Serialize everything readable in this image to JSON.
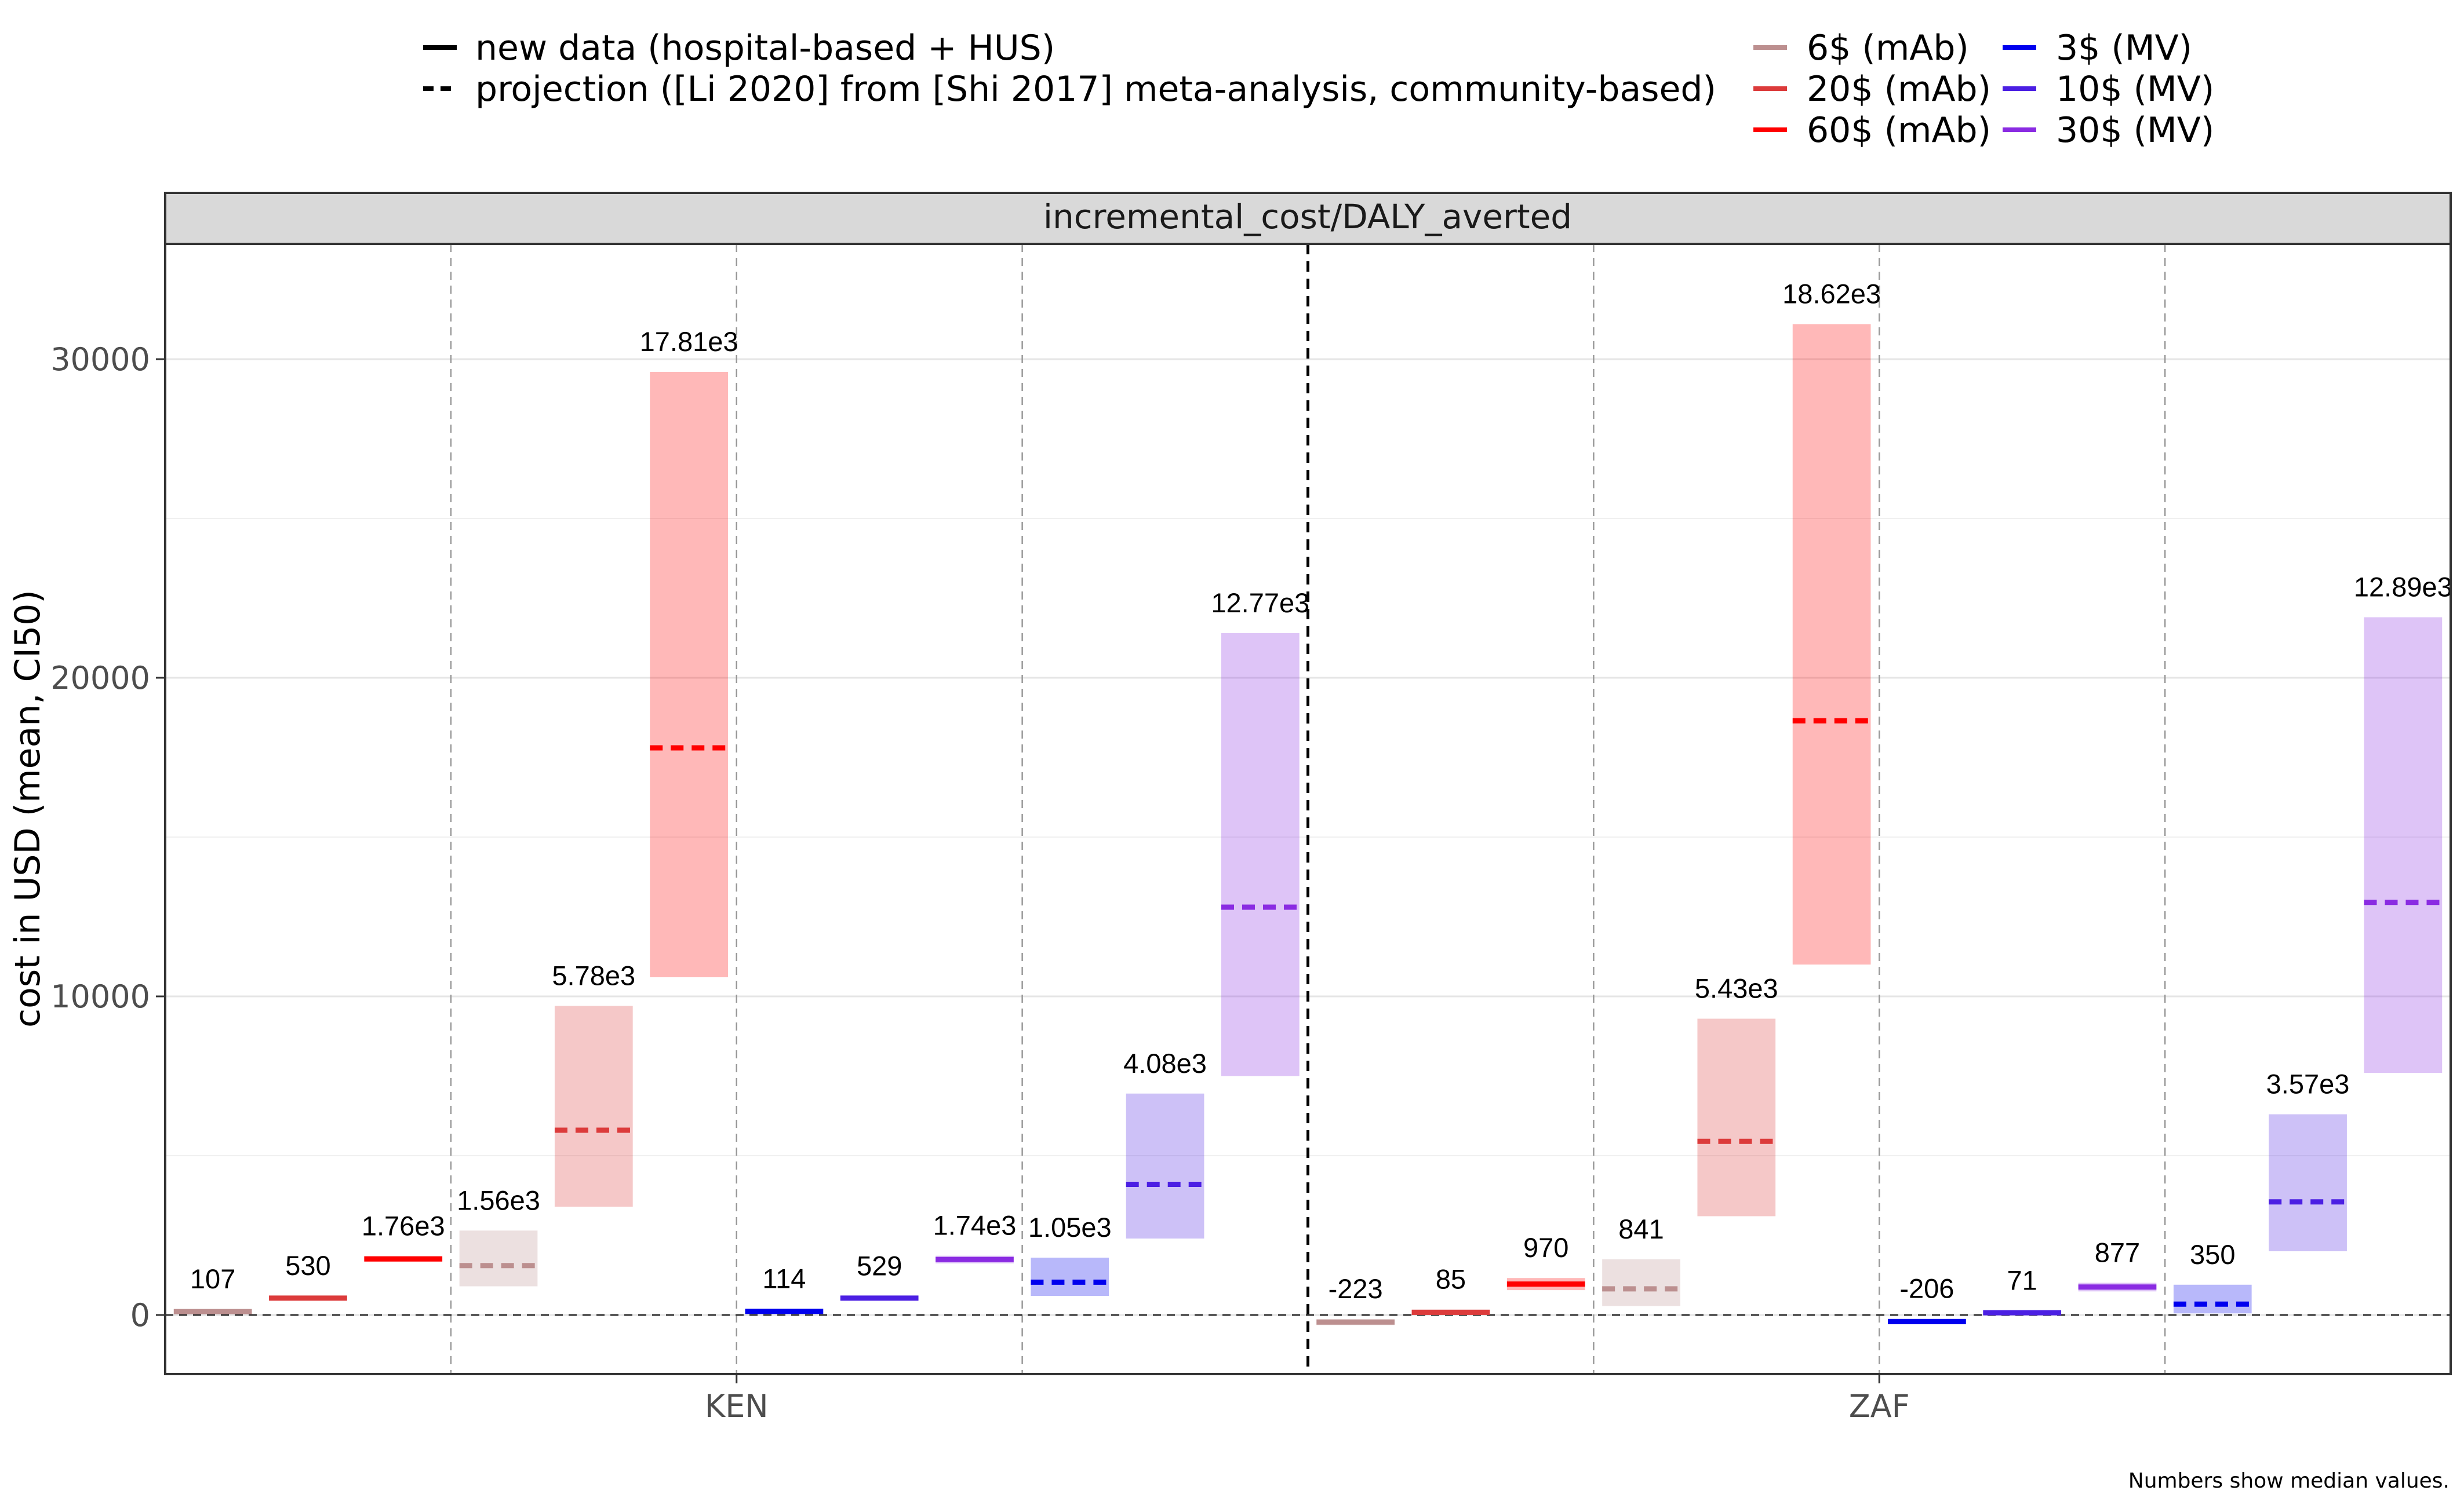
{
  "chart_data": {
    "type": "crossbar",
    "facet_label": "incremental_cost/DALY_averted",
    "ylabel": "cost in USD (mean, CI50)",
    "xlabel": "",
    "caption": "Numbers show median values.",
    "categories": [
      "KEN",
      "ZAF"
    ],
    "ylim": [
      -1900,
      34000
    ],
    "yticks": [
      0,
      10000,
      20000,
      30000
    ],
    "ytick_labels": [
      "0",
      "10000",
      "20000",
      "30000"
    ],
    "grid": true,
    "legend_placement": "top",
    "linetype_legend": [
      {
        "key": "solid",
        "label": "new data (hospital-based + HUS)"
      },
      {
        "key": "dashed",
        "label": "projection ([Li 2020] from [Shi 2017] meta-analysis, community-based)"
      }
    ],
    "color_legend": [
      {
        "key": "mab6",
        "label": "6$ (mAb)",
        "color": "#bc8f8f"
      },
      {
        "key": "mab20",
        "label": "20$ (mAb)",
        "color": "#dc3b3b"
      },
      {
        "key": "mab60",
        "label": "60$ (mAb)",
        "color": "#ff0000"
      },
      {
        "key": "mv3",
        "label": "3$ (MV)",
        "color": "#0000ee"
      },
      {
        "key": "mv10",
        "label": "10$ (MV)",
        "color": "#4b1fe3"
      },
      {
        "key": "mv30",
        "label": "30$ (MV)",
        "color": "#8a2be2"
      }
    ],
    "series": [
      {
        "group": "KEN",
        "color": "mab6",
        "linetype": "solid",
        "mean": 107,
        "low": 30,
        "high": 180,
        "label": "107"
      },
      {
        "group": "KEN",
        "color": "mab20",
        "linetype": "solid",
        "mean": 530,
        "low": 470,
        "high": 600,
        "label": "530"
      },
      {
        "group": "KEN",
        "color": "mab60",
        "linetype": "solid",
        "mean": 1760,
        "low": 1680,
        "high": 1850,
        "label": "1.76e3"
      },
      {
        "group": "KEN",
        "color": "mab6",
        "linetype": "dashed",
        "mean": 1550,
        "low": 900,
        "high": 2650,
        "label": "1.56e3"
      },
      {
        "group": "KEN",
        "color": "mab20",
        "linetype": "dashed",
        "mean": 5800,
        "low": 3400,
        "high": 9700,
        "label": "5.78e3"
      },
      {
        "group": "KEN",
        "color": "mab60",
        "linetype": "dashed",
        "mean": 17800,
        "low": 10600,
        "high": 29600,
        "label": "17.81e3"
      },
      {
        "group": "KEN",
        "color": "mv3",
        "linetype": "solid",
        "mean": 114,
        "low": 40,
        "high": 190,
        "label": "114"
      },
      {
        "group": "KEN",
        "color": "mv10",
        "linetype": "solid",
        "mean": 529,
        "low": 470,
        "high": 590,
        "label": "529"
      },
      {
        "group": "KEN",
        "color": "mv30",
        "linetype": "solid",
        "mean": 1740,
        "low": 1620,
        "high": 1860,
        "label": "1.74e3"
      },
      {
        "group": "KEN",
        "color": "mv3",
        "linetype": "dashed",
        "mean": 1030,
        "low": 600,
        "high": 1800,
        "label": "1.05e3"
      },
      {
        "group": "KEN",
        "color": "mv10",
        "linetype": "dashed",
        "mean": 4100,
        "low": 2400,
        "high": 6950,
        "label": "4.08e3"
      },
      {
        "group": "KEN",
        "color": "mv30",
        "linetype": "dashed",
        "mean": 12800,
        "low": 7500,
        "high": 21400,
        "label": "12.77e3"
      },
      {
        "group": "ZAF",
        "color": "mab6",
        "linetype": "solid",
        "mean": -223,
        "low": -320,
        "high": -130,
        "label": "-223"
      },
      {
        "group": "ZAF",
        "color": "mab20",
        "linetype": "solid",
        "mean": 85,
        "low": 0,
        "high": 170,
        "label": "85"
      },
      {
        "group": "ZAF",
        "color": "mab60",
        "linetype": "solid",
        "mean": 970,
        "low": 780,
        "high": 1160,
        "label": "970"
      },
      {
        "group": "ZAF",
        "color": "mab6",
        "linetype": "dashed",
        "mean": 820,
        "low": 280,
        "high": 1750,
        "label": "841"
      },
      {
        "group": "ZAF",
        "color": "mab20",
        "linetype": "dashed",
        "mean": 5450,
        "low": 3100,
        "high": 9300,
        "label": "5.43e3"
      },
      {
        "group": "ZAF",
        "color": "mab60",
        "linetype": "dashed",
        "mean": 18650,
        "low": 11000,
        "high": 31100,
        "label": "18.62e3"
      },
      {
        "group": "ZAF",
        "color": "mv3",
        "linetype": "solid",
        "mean": -206,
        "low": -290,
        "high": -120,
        "label": "-206"
      },
      {
        "group": "ZAF",
        "color": "mv10",
        "linetype": "solid",
        "mean": 71,
        "low": 0,
        "high": 140,
        "label": "71"
      },
      {
        "group": "ZAF",
        "color": "mv30",
        "linetype": "solid",
        "mean": 877,
        "low": 740,
        "high": 1010,
        "label": "877"
      },
      {
        "group": "ZAF",
        "color": "mv3",
        "linetype": "dashed",
        "mean": 340,
        "low": 50,
        "high": 950,
        "label": "350"
      },
      {
        "group": "ZAF",
        "color": "mv10",
        "linetype": "dashed",
        "mean": 3550,
        "low": 2000,
        "high": 6300,
        "label": "3.57e3"
      },
      {
        "group": "ZAF",
        "color": "mv30",
        "linetype": "dashed",
        "mean": 12950,
        "low": 7600,
        "high": 21900,
        "label": "12.89e3"
      }
    ]
  }
}
